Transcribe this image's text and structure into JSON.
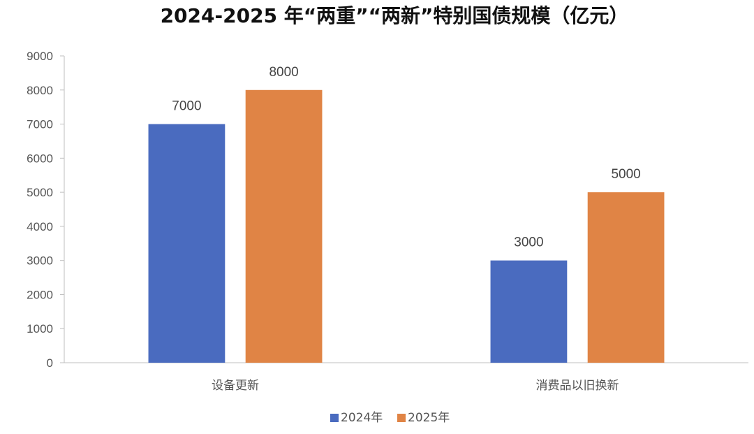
{
  "chart_data": {
    "type": "bar",
    "title": "2024-2025 年“两重”“两新”特别国债规模（亿元）",
    "categories": [
      "设备更新",
      "消费品以旧换新"
    ],
    "series": [
      {
        "name": "2024年",
        "color": "#4a6bbf",
        "values": [
          7000,
          3000
        ]
      },
      {
        "name": "2025年",
        "color": "#e08445",
        "values": [
          8000,
          5000
        ]
      }
    ],
    "yticks": [
      "0",
      "1000",
      "2000",
      "3000",
      "4000",
      "5000",
      "6000",
      "7000",
      "8000",
      "9000"
    ],
    "ylim": [
      0,
      9000
    ],
    "xlabel": "",
    "ylabel": "",
    "grid": false,
    "legend_position": "bottom"
  }
}
